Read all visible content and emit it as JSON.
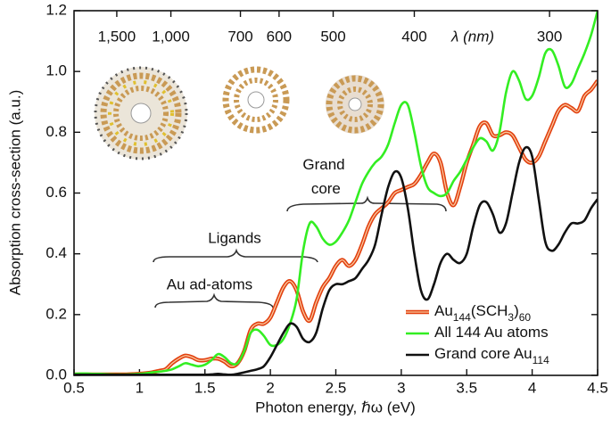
{
  "chart_data": {
    "type": "line",
    "x_label": "Photon energy, ℏω (eV)",
    "y_label": "Absorption cross-section (a.u.)",
    "xlim": [
      0.5,
      4.5
    ],
    "ylim": [
      0,
      1.2
    ],
    "xticks": [
      0.5,
      1,
      1.5,
      2,
      2.5,
      3,
      3.5,
      4,
      4.5
    ],
    "yticks": [
      {
        "value": 0,
        "label": "0.0"
      },
      0.2,
      0.4,
      0.6,
      0.8,
      {
        "value": 1,
        "label": "1.0"
      },
      1.2
    ],
    "top_axis": {
      "label": "λ (nm)",
      "ticks": [
        {
          "value": 1500,
          "label": "1,500"
        },
        {
          "value": 1000,
          "label": "1,000"
        },
        700,
        600,
        500,
        400,
        300
      ]
    },
    "annotations": [
      "Grand core",
      "Ligands",
      "Au ad-atoms"
    ],
    "legend_position": "lower right",
    "x": [
      0.5,
      0.55,
      0.6,
      0.65,
      0.7,
      0.75,
      0.8,
      0.85,
      0.9,
      0.95,
      1.0,
      1.05,
      1.1,
      1.15,
      1.2,
      1.25,
      1.3,
      1.35,
      1.4,
      1.45,
      1.5,
      1.55,
      1.6,
      1.65,
      1.7,
      1.75,
      1.8,
      1.85,
      1.9,
      1.95,
      2.0,
      2.05,
      2.1,
      2.15,
      2.2,
      2.25,
      2.3,
      2.35,
      2.4,
      2.45,
      2.5,
      2.55,
      2.6,
      2.65,
      2.7,
      2.75,
      2.8,
      2.85,
      2.9,
      2.95,
      3.0,
      3.05,
      3.1,
      3.15,
      3.2,
      3.25,
      3.3,
      3.35,
      3.4,
      3.45,
      3.5,
      3.55,
      3.6,
      3.65,
      3.7,
      3.75,
      3.8,
      3.85,
      3.9,
      3.95,
      4.0,
      4.05,
      4.1,
      4.15,
      4.2,
      4.25,
      4.3,
      4.35,
      4.4,
      4.45,
      4.5
    ],
    "series": [
      {
        "name": "Au144(SCH3)60",
        "color": "#e2400f",
        "values": [
          0.003,
          0.003,
          0.003,
          0.003,
          0.003,
          0.003,
          0.003,
          0.003,
          0.003,
          0.004,
          0.005,
          0.007,
          0.01,
          0.015,
          0.02,
          0.04,
          0.055,
          0.065,
          0.06,
          0.05,
          0.05,
          0.055,
          0.055,
          0.045,
          0.03,
          0.04,
          0.08,
          0.15,
          0.17,
          0.17,
          0.19,
          0.24,
          0.29,
          0.31,
          0.28,
          0.21,
          0.18,
          0.24,
          0.29,
          0.32,
          0.36,
          0.38,
          0.36,
          0.38,
          0.43,
          0.49,
          0.53,
          0.55,
          0.57,
          0.6,
          0.61,
          0.62,
          0.63,
          0.66,
          0.7,
          0.73,
          0.7,
          0.6,
          0.56,
          0.62,
          0.7,
          0.76,
          0.82,
          0.83,
          0.79,
          0.79,
          0.8,
          0.79,
          0.75,
          0.71,
          0.7,
          0.72,
          0.77,
          0.82,
          0.87,
          0.89,
          0.88,
          0.87,
          0.92,
          0.94,
          0.97
        ]
      },
      {
        "name": "All 144 Au atoms",
        "color": "#33ee22",
        "values": [
          0.005,
          0.006,
          0.006,
          0.005,
          0.005,
          0.004,
          0.003,
          0.003,
          0.003,
          0.004,
          0.005,
          0.007,
          0.01,
          0.012,
          0.015,
          0.02,
          0.03,
          0.04,
          0.035,
          0.03,
          0.035,
          0.05,
          0.07,
          0.06,
          0.04,
          0.04,
          0.08,
          0.14,
          0.15,
          0.13,
          0.1,
          0.1,
          0.12,
          0.17,
          0.25,
          0.41,
          0.5,
          0.49,
          0.45,
          0.43,
          0.44,
          0.47,
          0.51,
          0.57,
          0.63,
          0.67,
          0.7,
          0.72,
          0.76,
          0.83,
          0.89,
          0.89,
          0.8,
          0.69,
          0.62,
          0.6,
          0.59,
          0.6,
          0.64,
          0.67,
          0.71,
          0.75,
          0.78,
          0.77,
          0.74,
          0.8,
          0.93,
          1.0,
          0.97,
          0.91,
          0.92,
          0.98,
          1.06,
          1.07,
          1.02,
          0.95,
          0.96,
          1.01,
          1.06,
          1.12,
          1.2
        ]
      },
      {
        "name": "Grand core Au114",
        "color": "#111111",
        "values": [
          0.002,
          0.002,
          0.002,
          0.002,
          0.002,
          0.002,
          0.002,
          0.002,
          0.002,
          0.002,
          0.002,
          0.002,
          0.002,
          0.002,
          0.002,
          0.002,
          0.002,
          0.002,
          0.002,
          0.002,
          0.002,
          0.003,
          0.005,
          0.003,
          0.002,
          0.005,
          0.01,
          0.015,
          0.02,
          0.03,
          0.06,
          0.1,
          0.14,
          0.17,
          0.16,
          0.12,
          0.11,
          0.14,
          0.22,
          0.28,
          0.3,
          0.3,
          0.31,
          0.32,
          0.35,
          0.38,
          0.43,
          0.53,
          0.62,
          0.67,
          0.65,
          0.55,
          0.4,
          0.28,
          0.25,
          0.3,
          0.37,
          0.4,
          0.38,
          0.37,
          0.4,
          0.49,
          0.56,
          0.57,
          0.53,
          0.47,
          0.5,
          0.6,
          0.7,
          0.75,
          0.72,
          0.58,
          0.44,
          0.41,
          0.43,
          0.47,
          0.5,
          0.5,
          0.51,
          0.55,
          0.58
        ]
      }
    ]
  }
}
